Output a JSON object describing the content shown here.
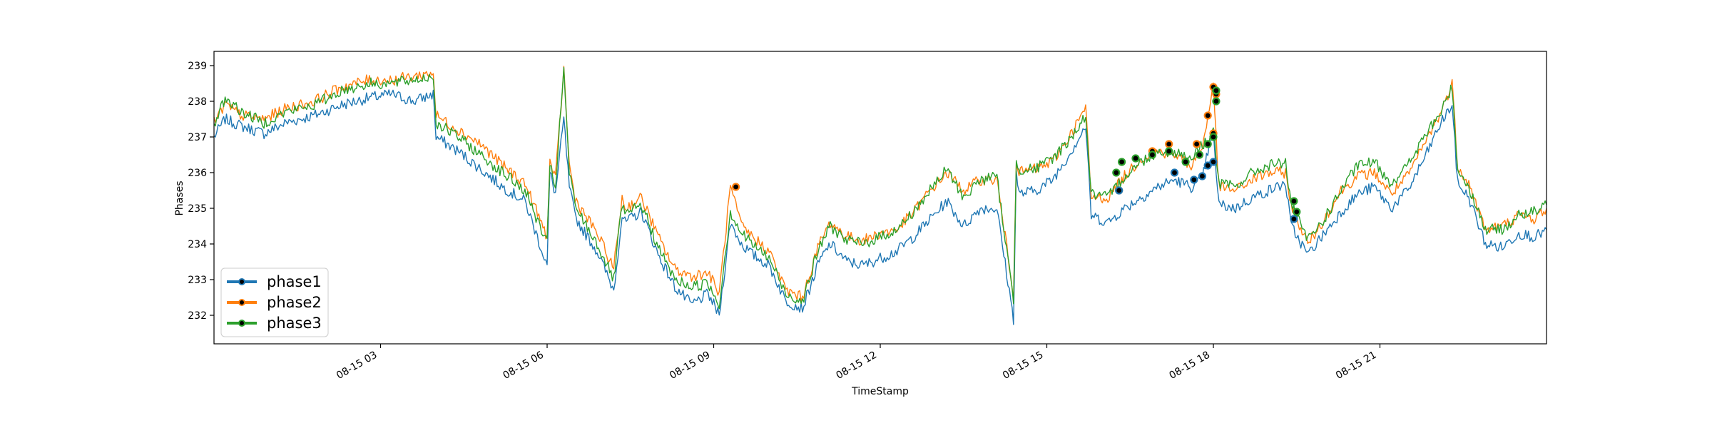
{
  "chart_data": {
    "type": "line",
    "title": "",
    "xlabel": "TimeStamp",
    "ylabel": "Phases",
    "xlim": [
      0.0,
      24.0
    ],
    "ylim": [
      231.2,
      239.4
    ],
    "grid": false,
    "legend_position": "lower-left",
    "x_ticks": [
      {
        "x": 3,
        "label": "08-15 03"
      },
      {
        "x": 6,
        "label": "08-15 06"
      },
      {
        "x": 9,
        "label": "08-15 09"
      },
      {
        "x": 12,
        "label": "08-15 12"
      },
      {
        "x": 15,
        "label": "08-15 15"
      },
      {
        "x": 18,
        "label": "08-15 18"
      },
      {
        "x": 21,
        "label": "08-15 21"
      }
    ],
    "y_ticks": [
      {
        "y": 232,
        "label": "232"
      },
      {
        "y": 233,
        "label": "233"
      },
      {
        "y": 234,
        "label": "234"
      },
      {
        "y": 235,
        "label": "235"
      },
      {
        "y": 236,
        "label": "236"
      },
      {
        "y": 237,
        "label": "237"
      },
      {
        "y": 238,
        "label": "238"
      },
      {
        "y": 239,
        "label": "239"
      }
    ],
    "series": [
      {
        "name": "phase1",
        "color": "#1f77b4",
        "x": [
          0.0,
          0.2,
          0.5,
          0.9,
          1.3,
          1.8,
          2.3,
          2.8,
          3.2,
          3.6,
          3.95,
          4.0,
          4.4,
          4.8,
          5.2,
          5.6,
          6.0,
          6.05,
          6.15,
          6.3,
          6.4,
          6.5,
          6.6,
          6.9,
          7.2,
          7.35,
          7.4,
          7.7,
          8.0,
          8.3,
          8.6,
          8.9,
          9.1,
          9.3,
          9.5,
          9.7,
          10.0,
          10.3,
          10.6,
          10.9,
          11.1,
          11.4,
          11.7,
          12.0,
          12.3,
          12.6,
          12.9,
          13.2,
          13.5,
          13.8,
          14.1,
          14.4,
          14.45,
          14.5,
          14.8,
          15.1,
          15.4,
          15.7,
          15.8,
          16.1,
          16.4,
          16.7,
          17.0,
          17.3,
          17.6,
          17.8,
          17.9,
          18.0,
          18.1,
          18.4,
          18.7,
          19.0,
          19.3,
          19.4,
          19.7,
          20.0,
          20.3,
          20.6,
          20.9,
          21.2,
          21.5,
          21.8,
          22.1,
          22.3,
          22.4,
          22.6,
          22.9,
          23.2,
          23.5,
          23.8,
          24.0
        ],
        "y": [
          237.0,
          237.5,
          237.3,
          237.1,
          237.4,
          237.6,
          237.9,
          238.1,
          238.2,
          238.0,
          238.2,
          237.0,
          236.6,
          236.1,
          235.6,
          235.2,
          233.4,
          236.0,
          235.4,
          237.5,
          235.6,
          234.8,
          234.5,
          233.8,
          232.7,
          234.8,
          234.6,
          234.9,
          233.7,
          232.8,
          232.3,
          232.6,
          232.0,
          234.6,
          234.0,
          233.7,
          233.4,
          232.4,
          232.2,
          233.5,
          234.0,
          233.5,
          233.4,
          233.6,
          233.8,
          234.2,
          234.7,
          235.2,
          234.5,
          235.0,
          235.0,
          231.9,
          236.0,
          235.4,
          235.5,
          235.8,
          236.5,
          237.3,
          234.8,
          234.6,
          235.0,
          235.3,
          235.6,
          235.8,
          235.6,
          235.8,
          236.6,
          237.0,
          235.1,
          235.0,
          235.3,
          235.5,
          235.7,
          234.5,
          233.7,
          234.3,
          234.9,
          235.4,
          235.6,
          235.0,
          235.5,
          236.4,
          237.4,
          237.9,
          235.7,
          235.3,
          234.0,
          233.9,
          234.3,
          234.2,
          234.4
        ]
      },
      {
        "name": "phase2",
        "color": "#ff7f0e",
        "x": [
          0.0,
          0.2,
          0.5,
          0.9,
          1.3,
          1.8,
          2.3,
          2.8,
          3.2,
          3.6,
          3.95,
          4.0,
          4.4,
          4.8,
          5.2,
          5.6,
          6.0,
          6.05,
          6.15,
          6.3,
          6.4,
          6.5,
          6.6,
          6.9,
          7.2,
          7.35,
          7.4,
          7.7,
          8.0,
          8.3,
          8.6,
          8.9,
          9.1,
          9.3,
          9.5,
          9.7,
          10.0,
          10.3,
          10.6,
          10.9,
          11.1,
          11.4,
          11.7,
          12.0,
          12.3,
          12.6,
          12.9,
          13.2,
          13.5,
          13.8,
          14.1,
          14.4,
          14.45,
          14.5,
          14.8,
          15.1,
          15.4,
          15.7,
          15.8,
          16.1,
          16.4,
          16.7,
          17.0,
          17.3,
          17.6,
          17.8,
          17.9,
          18.0,
          18.1,
          18.4,
          18.7,
          19.0,
          19.3,
          19.4,
          19.7,
          20.0,
          20.3,
          20.6,
          20.9,
          21.2,
          21.5,
          21.8,
          22.1,
          22.3,
          22.4,
          22.6,
          22.9,
          23.2,
          23.5,
          23.8,
          24.0
        ],
        "y": [
          237.4,
          237.9,
          237.6,
          237.5,
          237.8,
          238.0,
          238.4,
          238.6,
          238.6,
          238.7,
          238.8,
          237.6,
          237.2,
          236.8,
          236.2,
          235.7,
          234.2,
          236.3,
          235.8,
          238.9,
          236.2,
          235.3,
          235.0,
          234.3,
          233.3,
          235.3,
          235.0,
          235.3,
          234.2,
          233.3,
          233.1,
          233.2,
          232.6,
          235.6,
          234.5,
          234.2,
          233.8,
          232.7,
          232.5,
          234.0,
          234.6,
          234.2,
          234.1,
          234.3,
          234.4,
          234.9,
          235.5,
          236.0,
          235.5,
          235.8,
          235.8,
          232.6,
          236.4,
          236.0,
          236.1,
          236.3,
          237.0,
          237.8,
          235.3,
          235.3,
          235.9,
          236.4,
          236.6,
          236.5,
          236.2,
          236.7,
          237.6,
          238.4,
          235.6,
          235.5,
          235.8,
          236.0,
          236.0,
          235.1,
          234.0,
          234.7,
          235.5,
          235.9,
          236.0,
          235.4,
          235.9,
          236.8,
          237.7,
          238.5,
          236.2,
          235.7,
          234.4,
          234.5,
          234.8,
          234.7,
          235.0
        ]
      },
      {
        "name": "phase3",
        "color": "#2ca02c",
        "x": [
          0.0,
          0.2,
          0.5,
          0.9,
          1.3,
          1.8,
          2.3,
          2.8,
          3.2,
          3.6,
          3.95,
          4.0,
          4.4,
          4.8,
          5.2,
          5.6,
          6.0,
          6.05,
          6.15,
          6.3,
          6.4,
          6.5,
          6.6,
          6.9,
          7.2,
          7.35,
          7.4,
          7.7,
          8.0,
          8.3,
          8.6,
          8.9,
          9.1,
          9.3,
          9.5,
          9.7,
          10.0,
          10.3,
          10.6,
          10.9,
          11.1,
          11.4,
          11.7,
          12.0,
          12.3,
          12.6,
          12.9,
          13.2,
          13.5,
          13.8,
          14.1,
          14.4,
          14.45,
          14.5,
          14.8,
          15.1,
          15.4,
          15.7,
          15.8,
          16.1,
          16.4,
          16.7,
          17.0,
          17.3,
          17.6,
          17.8,
          17.9,
          18.0,
          18.1,
          18.4,
          18.7,
          19.0,
          19.3,
          19.4,
          19.7,
          20.0,
          20.3,
          20.6,
          20.9,
          21.2,
          21.5,
          21.8,
          22.1,
          22.3,
          22.4,
          22.6,
          22.9,
          23.2,
          23.5,
          23.8,
          24.0
        ],
        "y": [
          237.3,
          238.1,
          237.7,
          237.4,
          237.7,
          237.9,
          238.3,
          238.5,
          238.5,
          238.6,
          238.7,
          237.4,
          237.0,
          236.5,
          236.0,
          235.5,
          234.0,
          236.2,
          235.6,
          238.9,
          236.0,
          235.1,
          234.8,
          234.0,
          233.0,
          235.1,
          234.8,
          235.1,
          233.9,
          233.0,
          232.8,
          232.9,
          232.3,
          234.9,
          234.3,
          234.0,
          233.6,
          232.6,
          232.4,
          233.9,
          234.5,
          234.1,
          234.0,
          234.2,
          234.4,
          234.9,
          235.5,
          236.1,
          235.3,
          235.8,
          235.9,
          232.4,
          236.3,
          236.1,
          236.1,
          236.4,
          236.9,
          237.6,
          235.4,
          235.3,
          235.9,
          236.3,
          236.6,
          236.6,
          236.4,
          236.8,
          236.9,
          237.2,
          235.7,
          235.6,
          236.0,
          236.2,
          236.3,
          235.1,
          234.1,
          234.7,
          235.5,
          236.2,
          236.3,
          235.7,
          236.2,
          237.0,
          237.7,
          238.4,
          236.1,
          235.6,
          234.4,
          234.4,
          234.8,
          234.9,
          235.1
        ]
      }
    ],
    "markers": [
      {
        "series": "phase2",
        "points": [
          [
            9.4,
            235.6
          ],
          [
            16.3,
            235.5
          ],
          [
            16.9,
            236.6
          ],
          [
            17.2,
            236.8
          ],
          [
            17.7,
            236.8
          ],
          [
            17.9,
            237.6
          ],
          [
            18.0,
            238.4
          ],
          [
            18.05,
            238.2
          ],
          [
            18.0,
            237.1
          ]
        ]
      },
      {
        "series": "phase1",
        "points": [
          [
            16.3,
            235.5
          ],
          [
            17.3,
            236.0
          ],
          [
            17.65,
            235.8
          ],
          [
            17.8,
            235.9
          ],
          [
            17.9,
            236.2
          ],
          [
            18.0,
            236.3
          ],
          [
            19.45,
            234.7
          ]
        ]
      },
      {
        "series": "phase3",
        "points": [
          [
            16.25,
            236.0
          ],
          [
            16.35,
            236.3
          ],
          [
            16.6,
            236.4
          ],
          [
            16.9,
            236.5
          ],
          [
            17.2,
            236.6
          ],
          [
            17.5,
            236.3
          ],
          [
            17.75,
            236.5
          ],
          [
            17.9,
            236.8
          ],
          [
            18.0,
            237.0
          ],
          [
            18.05,
            238.0
          ],
          [
            18.05,
            238.3
          ],
          [
            19.45,
            235.2
          ],
          [
            19.5,
            234.9
          ]
        ]
      }
    ]
  }
}
